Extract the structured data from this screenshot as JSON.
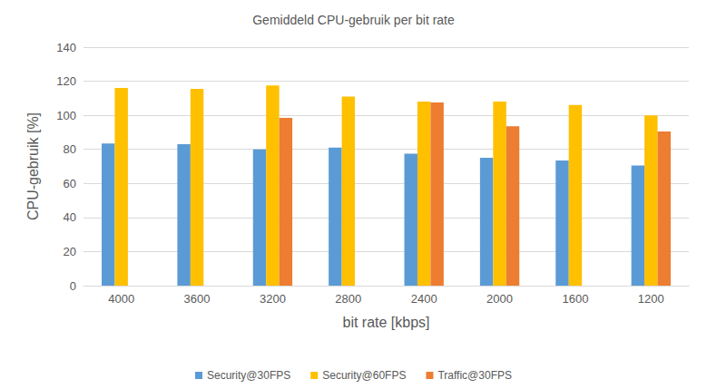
{
  "chart_data": {
    "type": "bar",
    "title": "Gemiddeld CPU-gebruik per bit rate",
    "x_label": "bit rate [kbps]",
    "y_label": "CPU-gebruik [%]",
    "categories": [
      "4000",
      "3600",
      "3200",
      "2800",
      "2400",
      "2000",
      "1600",
      "1200"
    ],
    "series": [
      {
        "name": "Security@30FPS",
        "color": "#5b9bd5",
        "values": [
          83.5,
          83,
          80,
          81,
          77.5,
          75,
          73.5,
          70.5
        ]
      },
      {
        "name": "Security@60FPS",
        "color": "#ffc000",
        "values": [
          116,
          115.5,
          117.5,
          111,
          108,
          108,
          106,
          100
        ]
      },
      {
        "name": "Traffic@30FPS",
        "color": "#ed7d31",
        "values": [
          null,
          null,
          98.5,
          null,
          107.5,
          93.5,
          null,
          90.5
        ]
      }
    ],
    "ylim": [
      0,
      140
    ],
    "yticks": [
      0,
      20,
      40,
      60,
      80,
      100,
      120,
      140
    ],
    "grid": true,
    "legend": "bottom"
  }
}
